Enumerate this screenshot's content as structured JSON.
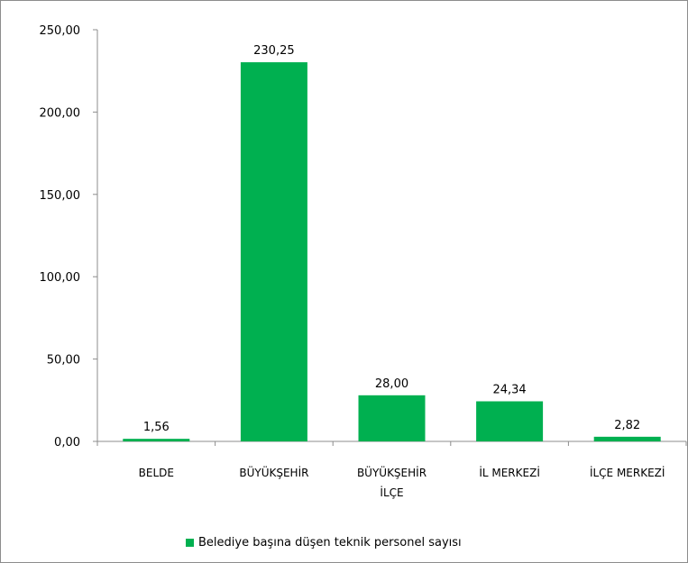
{
  "colors": {
    "series": "#00b050",
    "axis": "#8c8c8c"
  },
  "chart_data": {
    "type": "bar",
    "categories": [
      "BELDE",
      "BÜYÜKŞEHİR",
      "BÜYÜKŞEHİR İLÇE",
      "İL MERKEZİ",
      "İLÇE MERKEZİ"
    ],
    "category_lines": [
      [
        "BELDE"
      ],
      [
        "BÜYÜKŞEHİR"
      ],
      [
        "BÜYÜKŞEHİR",
        "İLÇE"
      ],
      [
        "İL MERKEZİ"
      ],
      [
        "İLÇE MERKEZİ"
      ]
    ],
    "series": [
      {
        "name": "Belediye başına düşen teknik personel sayısı",
        "values": [
          1.56,
          230.25,
          28.0,
          24.34,
          2.82
        ],
        "value_labels": [
          "1,56",
          "230,25",
          "28,00",
          "24,34",
          "2,82"
        ]
      }
    ],
    "yticks": [
      "0,00",
      "50,00",
      "100,00",
      "150,00",
      "200,00",
      "250,00"
    ],
    "ylim": [
      0,
      250
    ],
    "grid": false,
    "legend_position": "bottom"
  }
}
